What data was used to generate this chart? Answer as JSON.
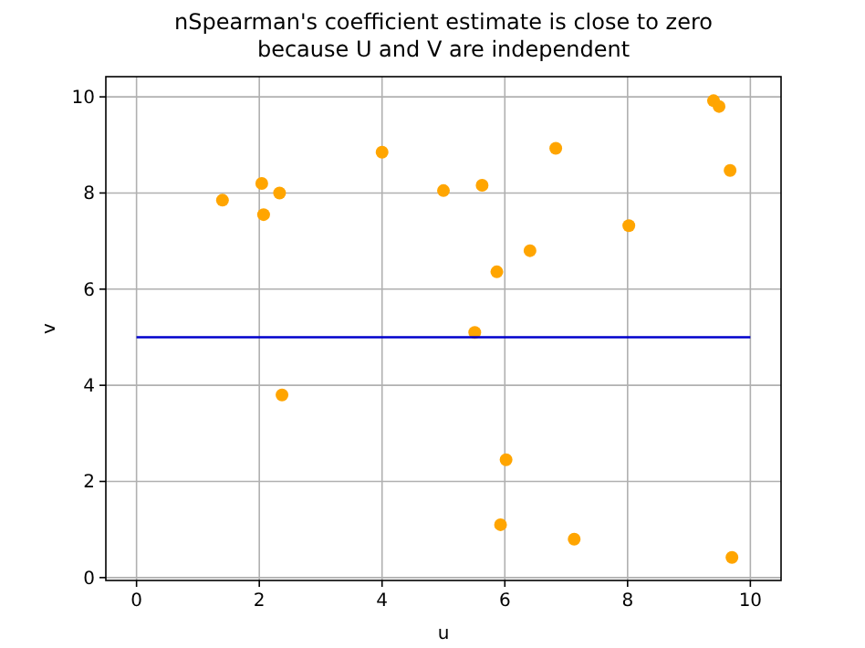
{
  "chart_data": {
    "type": "scatter",
    "title": "nSpearman's coefficient estimate is close to zero\nbecause U and V are independent",
    "xlabel": "u",
    "ylabel": "v",
    "xlim": [
      -0.5,
      10.5
    ],
    "ylim": [
      -0.06,
      10.42
    ],
    "xticks": [
      0,
      2,
      4,
      6,
      8,
      10
    ],
    "yticks": [
      0,
      2,
      4,
      6,
      8,
      10
    ],
    "grid": true,
    "series": [
      {
        "marker": "circle",
        "color": "#ffa500",
        "x": [
          1.4,
          2.04,
          2.07,
          2.33,
          2.37,
          4.0,
          5.0,
          5.63,
          5.51,
          5.87,
          6.02,
          5.93,
          6.41,
          6.83,
          7.13,
          8.02,
          9.4,
          9.49,
          9.67,
          9.7
        ],
        "values": [
          7.85,
          8.2,
          7.55,
          8.0,
          3.8,
          8.85,
          8.05,
          8.16,
          5.1,
          6.36,
          2.45,
          1.1,
          6.8,
          8.93,
          0.8,
          7.32,
          9.92,
          9.8,
          8.47,
          0.42
        ]
      },
      {
        "type": "line",
        "color": "#0000cc",
        "x": [
          0,
          10
        ],
        "values": [
          5,
          5
        ]
      }
    ]
  }
}
